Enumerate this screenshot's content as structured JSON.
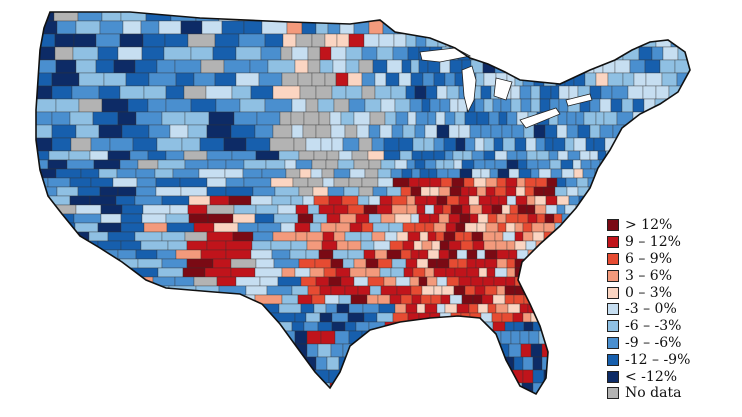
{
  "map": {
    "colors": {
      "gt12": "#7a0a14",
      "p9_12": "#c0141b",
      "p6_9": "#e64b32",
      "p3_6": "#f39a7c",
      "p0_3": "#fbd5c2",
      "n3_0": "#c6def1",
      "n6_3": "#8fc0e3",
      "n9_6": "#4a8fcf",
      "n12_9": "#175fad",
      "lt12": "#0d2b66",
      "nodata": "#b3b3b3"
    }
  },
  "legend": {
    "items": [
      {
        "label": "> 12%",
        "color": "#7a0a14"
      },
      {
        "label": "9 – 12%",
        "color": "#c0141b"
      },
      {
        "label": "6 – 9%",
        "color": "#e64b32"
      },
      {
        "label": "3 – 6%",
        "color": "#f39a7c"
      },
      {
        "label": "0 – 3%",
        "color": "#fbd5c2"
      },
      {
        "label": "-3 – 0%",
        "color": "#c6def1"
      },
      {
        "label": "-6 – -3%",
        "color": "#8fc0e3"
      },
      {
        "label": "-9 – -6%",
        "color": "#4a8fcf"
      },
      {
        "label": "-12 – -9%",
        "color": "#175fad"
      },
      {
        "label": "< -12%",
        "color": "#0d2b66"
      },
      {
        "label": "No data",
        "color": "#b3b3b3"
      }
    ]
  }
}
